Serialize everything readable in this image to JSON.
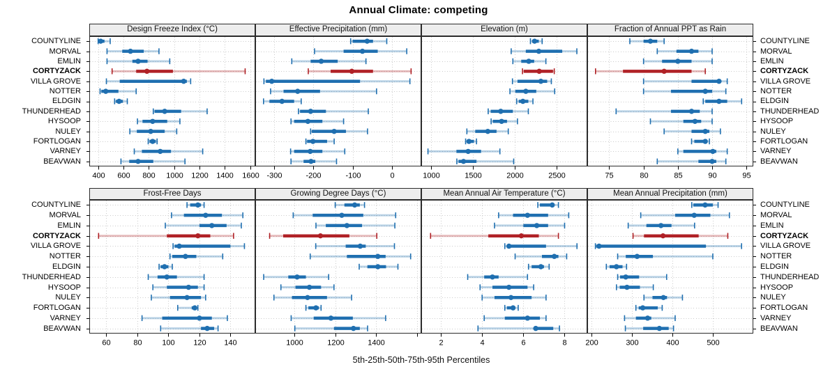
{
  "title": "Annual Climate: competing",
  "caption": "5th-25th-50th-75th-95th Percentiles",
  "colors": {
    "series": "#1f6fb0",
    "highlight": "#b02126",
    "grid": "#c9c9c9",
    "strip_bg": "#ededed",
    "border": "#2b2b2b",
    "background": "#ffffff"
  },
  "chart_data": {
    "type": "percentile-dotplot",
    "percentiles": [
      5,
      25,
      50,
      75,
      95
    ],
    "legend": "5th-25th-50th-75th-95th Percentiles",
    "categories": [
      "COUNTYLINE",
      "MORVAL",
      "EMLIN",
      "CORTYZACK",
      "VILLA GROVE",
      "NOTTER",
      "ELDGIN",
      "THUNDERHEAD",
      "HYSOOP",
      "NULEY",
      "FORTLOGAN",
      "VARNEY",
      "BEAVWAN"
    ],
    "highlight_category": "CORTYZACK",
    "panels": [
      {
        "title": "Design Freeze Index (°C)",
        "grid_row": 0,
        "grid_col": 0,
        "xlim": [
          330,
          1640
        ],
        "ticks": [
          400,
          600,
          800,
          1000,
          1200,
          1400,
          1600
        ],
        "tick_labels": [
          "400",
          "600",
          "800",
          "1000",
          "1200",
          "1400",
          "1600"
        ],
        "values": [
          [
            400,
            405,
            420,
            450,
            495
          ],
          [
            470,
            590,
            655,
            760,
            880
          ],
          [
            470,
            670,
            715,
            790,
            965
          ],
          [
            510,
            700,
            785,
            990,
            1560
          ],
          [
            465,
            570,
            1075,
            1100,
            1130
          ],
          [
            415,
            425,
            460,
            560,
            700
          ],
          [
            530,
            540,
            565,
            595,
            630
          ],
          [
            835,
            845,
            925,
            1055,
            1260
          ],
          [
            710,
            750,
            830,
            945,
            1045
          ],
          [
            650,
            705,
            815,
            925,
            1020
          ],
          [
            795,
            805,
            830,
            855,
            865
          ],
          [
            685,
            745,
            890,
            975,
            1225
          ],
          [
            580,
            645,
            715,
            835,
            1085
          ]
        ]
      },
      {
        "title": "Effective Precipitation (mm)",
        "grid_row": 0,
        "grid_col": 1,
        "xlim": [
          -348,
          75
        ],
        "ticks": [
          -300,
          -200,
          -100,
          0
        ],
        "tick_labels": [
          "-300",
          "-200",
          "-100",
          "0"
        ],
        "values": [
          [
            -105,
            -100,
            -63,
            -48,
            -13
          ],
          [
            -197,
            -123,
            -75,
            -36,
            38
          ],
          [
            -255,
            -207,
            -180,
            -138,
            -66
          ],
          [
            -213,
            -156,
            -102,
            -48,
            49
          ],
          [
            -326,
            -321,
            -306,
            -81,
            46
          ],
          [
            -309,
            -276,
            -240,
            -183,
            -39
          ],
          [
            -327,
            -312,
            -280,
            -249,
            -231
          ],
          [
            -238,
            -234,
            -207,
            -168,
            -60
          ],
          [
            -257,
            -249,
            -214,
            -177,
            -123
          ],
          [
            -207,
            -204,
            -147,
            -117,
            -62
          ],
          [
            -219,
            -216,
            -201,
            -165,
            -147
          ],
          [
            -258,
            -249,
            -208,
            -177,
            -120
          ],
          [
            -257,
            -225,
            -206,
            -195,
            -141
          ]
        ]
      },
      {
        "title": "Elevation (m)",
        "grid_row": 0,
        "grid_col": 2,
        "xlim": [
          885,
          2870
        ],
        "ticks": [
          1000,
          1500,
          2000,
          2500
        ],
        "tick_labels": [
          "1000",
          "1500",
          "2000",
          "2500"
        ],
        "values": [
          [
            2190,
            2210,
            2240,
            2290,
            2330
          ],
          [
            1960,
            2135,
            2290,
            2570,
            2745
          ],
          [
            1980,
            2080,
            2170,
            2235,
            2375
          ],
          [
            2095,
            2110,
            2295,
            2460,
            2475
          ],
          [
            1975,
            2035,
            2315,
            2390,
            2440
          ],
          [
            1945,
            2010,
            2135,
            2260,
            2480
          ],
          [
            2025,
            2050,
            2100,
            2165,
            2220
          ],
          [
            1685,
            1715,
            1835,
            1980,
            2165
          ],
          [
            1720,
            1740,
            1845,
            1910,
            2035
          ],
          [
            1430,
            1530,
            1680,
            1785,
            1925
          ],
          [
            1415,
            1430,
            1455,
            1515,
            1545
          ],
          [
            965,
            1305,
            1445,
            1600,
            1825
          ],
          [
            1310,
            1330,
            1390,
            1545,
            1990
          ]
        ]
      },
      {
        "title": "Fraction of Annual PPT as Rain",
        "grid_row": 0,
        "grid_col": 3,
        "xlim": [
          71.8,
          96
        ],
        "ticks": [
          75,
          80,
          85,
          90,
          95
        ],
        "tick_labels": [
          "75",
          "80",
          "85",
          "90",
          "95"
        ],
        "values": [
          [
            78,
            80,
            81,
            82,
            83
          ],
          [
            82,
            84.8,
            87,
            88,
            90
          ],
          [
            80,
            82.7,
            85,
            87,
            90
          ],
          [
            73,
            77,
            83,
            87,
            89
          ],
          [
            80,
            87,
            91,
            91.3,
            92.2
          ],
          [
            80,
            84,
            89,
            90,
            92
          ],
          [
            88.7,
            89,
            91,
            92.2,
            94.3
          ],
          [
            76,
            84,
            87,
            88.2,
            90
          ],
          [
            81,
            85.8,
            87.5,
            88.4,
            90
          ],
          [
            83,
            87,
            89,
            89.6,
            91.2
          ],
          [
            87,
            87.4,
            89,
            89.3,
            89.6
          ],
          [
            85,
            85.8,
            90.1,
            90.6,
            92.2
          ],
          [
            82,
            88,
            90,
            90.6,
            92
          ]
        ]
      },
      {
        "title": "Frost-Free Days",
        "grid_row": 1,
        "grid_col": 0,
        "xlim": [
          49,
          156
        ],
        "ticks": [
          60,
          80,
          100,
          120,
          140
        ],
        "tick_labels": [
          "60",
          "80",
          "100",
          "120",
          "140"
        ],
        "values": [
          [
            112,
            114,
            119,
            121,
            123
          ],
          [
            102,
            110,
            124,
            134.5,
            148
          ],
          [
            98,
            120,
            128,
            137.5,
            147
          ],
          [
            55,
            99,
            119,
            127,
            142
          ],
          [
            103,
            104,
            107,
            140,
            149
          ],
          [
            101,
            102.5,
            111,
            118,
            135
          ],
          [
            94,
            95,
            97.5,
            100,
            102.5
          ],
          [
            87,
            93,
            99,
            105.5,
            123
          ],
          [
            90,
            99,
            113,
            119,
            123
          ],
          [
            89,
            101,
            112,
            121,
            124
          ],
          [
            106,
            115,
            117,
            118,
            119
          ],
          [
            83,
            96,
            120,
            128,
            138
          ],
          [
            95,
            121,
            125,
            129.5,
            132
          ]
        ]
      },
      {
        "title": "Growing Degree Days (°C)",
        "grid_row": 1,
        "grid_col": 1,
        "xlim": [
          810,
          1620
        ],
        "ticks": [
          1000,
          1200,
          1400,
          1600
        ],
        "tick_labels": [
          "1000",
          "1200",
          "1400",
          ""
        ],
        "values": [
          [
            1200,
            1245,
            1295,
            1320,
            1343
          ],
          [
            995,
            1090,
            1232,
            1337,
            1495
          ],
          [
            1106,
            1154,
            1257,
            1331,
            1491
          ],
          [
            880,
            946,
            1128,
            1269,
            1403
          ],
          [
            1105,
            1251,
            1322,
            1349,
            1489
          ],
          [
            1078,
            1257,
            1408,
            1446,
            1568
          ],
          [
            1317,
            1357,
            1408,
            1448,
            1506
          ],
          [
            851,
            971,
            1014,
            1057,
            1168
          ],
          [
            935,
            1006,
            1074,
            1131,
            1194
          ],
          [
            901,
            989,
            1065,
            1160,
            1280
          ],
          [
            1057,
            1069,
            1106,
            1120,
            1131
          ],
          [
            985,
            1095,
            1179,
            1286,
            1446
          ],
          [
            1003,
            1194,
            1289,
            1320,
            1358
          ]
        ]
      },
      {
        "title": "Mean Annual Air Temperature (°C)",
        "grid_row": 1,
        "grid_col": 2,
        "xlim": [
          1.05,
          9.1
        ],
        "ticks": [
          2,
          4,
          6,
          8
        ],
        "tick_labels": [
          "2",
          "4",
          "6",
          "8"
        ],
        "values": [
          [
            6.7,
            6.8,
            7.4,
            7.5,
            7.7
          ],
          [
            4.8,
            5.5,
            6.2,
            7.2,
            8.2
          ],
          [
            4.6,
            6.0,
            6.65,
            7.2,
            8.0
          ],
          [
            1.5,
            4.3,
            5.9,
            6.75,
            7.7
          ],
          [
            5.1,
            5.2,
            5.3,
            7.1,
            8.6
          ],
          [
            5.6,
            6.9,
            7.5,
            7.7,
            8.1
          ],
          [
            6.25,
            6.4,
            6.85,
            7.0,
            7.25
          ],
          [
            3.3,
            4.1,
            4.5,
            4.8,
            6.2
          ],
          [
            3.9,
            4.5,
            5.3,
            6.2,
            6.5
          ],
          [
            4.0,
            4.6,
            5.4,
            6.4,
            7.1
          ],
          [
            5.1,
            5.2,
            5.5,
            5.6,
            5.75
          ],
          [
            4.1,
            5.1,
            6.2,
            6.8,
            7.1
          ],
          [
            3.8,
            6.5,
            6.6,
            7.45,
            7.75
          ]
        ]
      },
      {
        "title": "Mean Annual Precipitation (mm)",
        "grid_row": 1,
        "grid_col": 3,
        "xlim": [
          190,
          600
        ],
        "ticks": [
          200,
          300,
          400,
          500
        ],
        "tick_labels": [
          "200",
          "300",
          "400",
          "500"
        ],
        "values": [
          [
            448,
            452,
            481,
            500,
            513
          ],
          [
            322,
            407,
            454,
            494,
            541
          ],
          [
            291,
            336,
            372,
            398,
            455
          ],
          [
            303,
            330,
            377,
            465,
            537
          ],
          [
            210,
            212,
            219,
            483,
            571
          ],
          [
            265,
            285,
            313,
            352,
            500
          ],
          [
            237,
            245,
            262,
            277,
            287
          ],
          [
            265,
            271,
            285,
            318,
            386
          ],
          [
            262,
            270,
            288,
            320,
            353
          ],
          [
            330,
            351,
            378,
            387,
            425
          ],
          [
            310,
            317,
            327,
            364,
            375
          ],
          [
            282,
            310,
            339,
            348,
            407
          ],
          [
            284,
            328,
            368,
            391,
            403
          ]
        ]
      }
    ]
  }
}
